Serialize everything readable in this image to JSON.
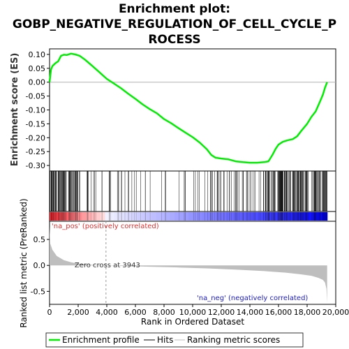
{
  "chart_data": {
    "type": "line",
    "title_lines": [
      "Enrichment plot:",
      "GOBP_NEGATIVE_REGULATION_OF_CELL_CYCLE_P",
      "ROCESS"
    ],
    "xlabel": "Rank in Ordered Dataset",
    "ylabel_top": "Enrichment score (ES)",
    "ylabel_bottom": "Ranked list metric (PreRanked)",
    "xlim": [
      0,
      20000
    ],
    "x_ticks": [
      0,
      2000,
      4000,
      6000,
      8000,
      10000,
      12000,
      14000,
      16000,
      18000,
      20000
    ],
    "x_tick_labels": [
      "0",
      "2,000",
      "4,000",
      "6,000",
      "8,000",
      "10,000",
      "12,000",
      "14,000",
      "16,000",
      "18,000",
      "20,000"
    ],
    "es_ylim": [
      -0.32,
      0.12
    ],
    "es_ticks": [
      0.1,
      0.05,
      0.0,
      -0.05,
      -0.1,
      -0.15,
      -0.2,
      -0.25,
      -0.3
    ],
    "es_tick_labels": [
      "0.10",
      "0.05",
      "0.00",
      "-0.05",
      "-0.10",
      "-0.15",
      "-0.20",
      "-0.25",
      "-0.30"
    ],
    "metric_ylim": [
      -0.75,
      0.85
    ],
    "metric_ticks": [
      0.5,
      0.0,
      -0.5
    ],
    "metric_tick_labels": [
      "0.5",
      "0.0",
      "-0.5"
    ],
    "zero_cross": 3943,
    "zero_cross_label": "Zero cross at 3943",
    "pos_label": "'na_pos' (positively correlated)",
    "neg_label": "'na_neg' (negatively correlated)",
    "n_genes": 19400,
    "series": [
      {
        "name": "Enrichment profile",
        "x": [
          0,
          100,
          200,
          400,
          600,
          800,
          1000,
          1200,
          1500,
          1800,
          2100,
          2500,
          3000,
          3500,
          4000,
          4500,
          5000,
          5500,
          6000,
          6500,
          7000,
          7500,
          8000,
          8500,
          9000,
          9500,
          10000,
          10500,
          11000,
          11300,
          11600,
          12000,
          12500,
          13000,
          13500,
          14000,
          14500,
          15000,
          15300,
          15600,
          15800,
          16000,
          16300,
          16600,
          17000,
          17300,
          17600,
          18000,
          18300,
          18600,
          18900,
          19100,
          19250,
          19400
        ],
        "y": [
          0.0,
          0.045,
          0.058,
          0.068,
          0.075,
          0.095,
          0.099,
          0.098,
          0.103,
          0.1,
          0.095,
          0.08,
          0.058,
          0.035,
          0.012,
          -0.005,
          -0.022,
          -0.042,
          -0.06,
          -0.08,
          -0.097,
          -0.112,
          -0.133,
          -0.148,
          -0.165,
          -0.182,
          -0.198,
          -0.218,
          -0.242,
          -0.262,
          -0.272,
          -0.275,
          -0.278,
          -0.285,
          -0.288,
          -0.29,
          -0.29,
          -0.288,
          -0.285,
          -0.26,
          -0.24,
          -0.225,
          -0.215,
          -0.21,
          -0.205,
          -0.195,
          -0.175,
          -0.15,
          -0.125,
          -0.105,
          -0.07,
          -0.045,
          -0.02,
          0.0
        ]
      },
      {
        "name": "Hits"
      },
      {
        "name": "Ranking metric scores",
        "x": [
          0,
          50,
          200,
          500,
          1000,
          1500,
          2000,
          2500,
          3000,
          3500,
          3943,
          5000,
          7000,
          9000,
          11000,
          13000,
          15000,
          16500,
          17500,
          18300,
          18800,
          19100,
          19250,
          19350,
          19400
        ],
        "y": [
          0.75,
          0.42,
          0.3,
          0.18,
          0.1,
          0.06,
          0.035,
          0.02,
          0.01,
          0.004,
          0.0,
          -0.01,
          -0.025,
          -0.04,
          -0.058,
          -0.08,
          -0.11,
          -0.14,
          -0.17,
          -0.2,
          -0.24,
          -0.28,
          -0.33,
          -0.45,
          -0.72
        ]
      }
    ],
    "colors": {
      "enrichment": "#00ee00",
      "hits": "#000000",
      "metric_fill": "#bebebe",
      "pos_strip": "#ff0000",
      "neg_strip": "#0000ff",
      "zero_line": "#b0b0b0",
      "legend_border": "#000000"
    },
    "legend": {
      "items": [
        "Enrichment profile",
        "Hits",
        "Ranking metric scores"
      ],
      "placement": "bottom"
    }
  }
}
